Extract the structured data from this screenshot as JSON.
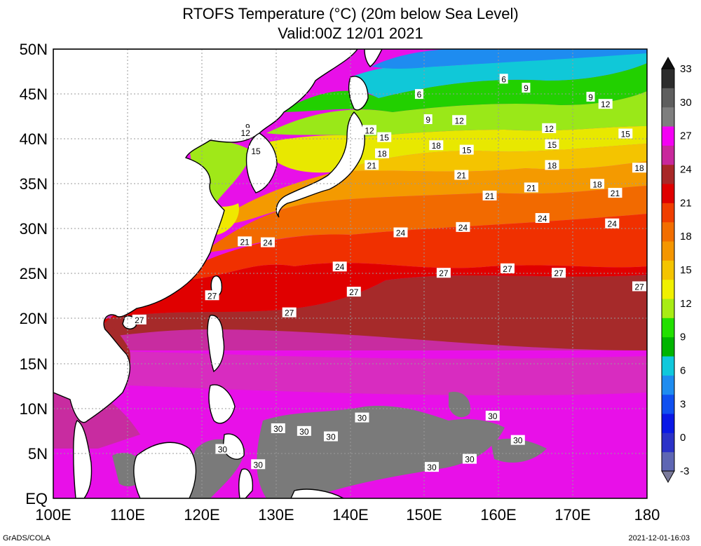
{
  "title": {
    "line1": "RTOFS Temperature (°C) (20m below Sea Level)",
    "line2": "Valid:00Z 12/01 2021"
  },
  "map": {
    "lat_labels": [
      "EQ",
      "5N",
      "10N",
      "15N",
      "20N",
      "25N",
      "30N",
      "35N",
      "40N",
      "45N",
      "50N"
    ],
    "lat_values": [
      0,
      5,
      10,
      15,
      20,
      25,
      30,
      35,
      40,
      45,
      50
    ],
    "lon_labels": [
      "100E",
      "110E",
      "120E",
      "130E",
      "140E",
      "150E",
      "160E",
      "170E",
      "180"
    ],
    "lon_values": [
      100,
      110,
      120,
      130,
      140,
      150,
      160,
      170,
      180
    ],
    "lat_range": [
      0,
      50
    ],
    "lon_range": [
      100,
      180
    ],
    "grid": "dotted",
    "contour_labels": [
      {
        "text": "6",
        "lon": 149.3,
        "lat": 45.0
      },
      {
        "text": "6",
        "lon": 160.7,
        "lat": 46.7
      },
      {
        "text": "9",
        "lon": 150.5,
        "lat": 42.2
      },
      {
        "text": "9",
        "lon": 163.7,
        "lat": 45.7
      },
      {
        "text": "9",
        "lon": 172.4,
        "lat": 44.7
      },
      {
        "text": "9",
        "lon": 126.2,
        "lat": 41.4
      },
      {
        "text": "12",
        "lon": 125.9,
        "lat": 40.7
      },
      {
        "text": "12",
        "lon": 142.6,
        "lat": 41.0
      },
      {
        "text": "12",
        "lon": 154.7,
        "lat": 42.1
      },
      {
        "text": "12",
        "lon": 166.8,
        "lat": 41.2
      },
      {
        "text": "12",
        "lon": 174.4,
        "lat": 43.9
      },
      {
        "text": "15",
        "lon": 127.3,
        "lat": 38.7
      },
      {
        "text": "15",
        "lon": 144.6,
        "lat": 40.2
      },
      {
        "text": "15",
        "lon": 155.7,
        "lat": 38.8
      },
      {
        "text": "15",
        "lon": 167.2,
        "lat": 39.4
      },
      {
        "text": "15",
        "lon": 177.1,
        "lat": 40.6
      },
      {
        "text": "18",
        "lon": 144.3,
        "lat": 38.4
      },
      {
        "text": "18",
        "lon": 151.6,
        "lat": 39.3
      },
      {
        "text": "18",
        "lon": 167.2,
        "lat": 37.1
      },
      {
        "text": "18",
        "lon": 173.3,
        "lat": 35.0
      },
      {
        "text": "18",
        "lon": 179.4,
        "lat": 36.8
      },
      {
        "text": "21",
        "lon": 142.9,
        "lat": 37.1
      },
      {
        "text": "21",
        "lon": 155.0,
        "lat": 36.0
      },
      {
        "text": "21",
        "lon": 158.8,
        "lat": 33.7
      },
      {
        "text": "21",
        "lon": 164.4,
        "lat": 34.6
      },
      {
        "text": "21",
        "lon": 175.7,
        "lat": 34.0
      },
      {
        "text": "21",
        "lon": 125.8,
        "lat": 28.6
      },
      {
        "text": "24",
        "lon": 128.9,
        "lat": 28.5
      },
      {
        "text": "24",
        "lon": 146.8,
        "lat": 29.6
      },
      {
        "text": "24",
        "lon": 155.2,
        "lat": 30.2
      },
      {
        "text": "24",
        "lon": 165.9,
        "lat": 31.2
      },
      {
        "text": "24",
        "lon": 175.3,
        "lat": 30.6
      },
      {
        "text": "24",
        "lon": 138.6,
        "lat": 25.8
      },
      {
        "text": "27",
        "lon": 121.4,
        "lat": 22.6
      },
      {
        "text": "27",
        "lon": 111.6,
        "lat": 19.9
      },
      {
        "text": "27",
        "lon": 131.8,
        "lat": 20.7
      },
      {
        "text": "27",
        "lon": 140.5,
        "lat": 23.0
      },
      {
        "text": "27",
        "lon": 152.6,
        "lat": 25.1
      },
      {
        "text": "27",
        "lon": 161.2,
        "lat": 25.6
      },
      {
        "text": "27",
        "lon": 168.1,
        "lat": 25.1
      },
      {
        "text": "27",
        "lon": 180.0,
        "lat": 23.6
      },
      {
        "text": "30",
        "lon": 130.3,
        "lat": 7.8
      },
      {
        "text": "30",
        "lon": 133.8,
        "lat": 7.5
      },
      {
        "text": "30",
        "lon": 137.4,
        "lat": 6.9
      },
      {
        "text": "30",
        "lon": 141.6,
        "lat": 9.0
      },
      {
        "text": "30",
        "lon": 122.8,
        "lat": 5.5
      },
      {
        "text": "30",
        "lon": 127.6,
        "lat": 3.8
      },
      {
        "text": "30",
        "lon": 151.0,
        "lat": 3.5
      },
      {
        "text": "30",
        "lon": 156.1,
        "lat": 4.4
      },
      {
        "text": "30",
        "lon": 159.2,
        "lat": 9.2
      },
      {
        "text": "30",
        "lon": 162.6,
        "lat": 6.5
      }
    ]
  },
  "colorbar": {
    "ticks": [
      "-3",
      "0",
      "3",
      "6",
      "9",
      "12",
      "15",
      "18",
      "21",
      "24",
      "27",
      "30",
      "33"
    ],
    "colors": [
      "#5e66b3",
      "#2b32c8",
      "#0a18e6",
      "#1050f0",
      "#1e8cf0",
      "#10c8dc",
      "#00b400",
      "#22e000",
      "#a8ec14",
      "#f0f000",
      "#f4c400",
      "#f49600",
      "#f26e00",
      "#f03e00",
      "#e00000",
      "#a82828",
      "#c8289c",
      "#f400f4",
      "#7e7e7e",
      "#5e5e5e",
      "#2c2c2c"
    ]
  },
  "footer": {
    "credit": "GrADS/COLA",
    "timestamp": "2021-12-01-16:03"
  }
}
